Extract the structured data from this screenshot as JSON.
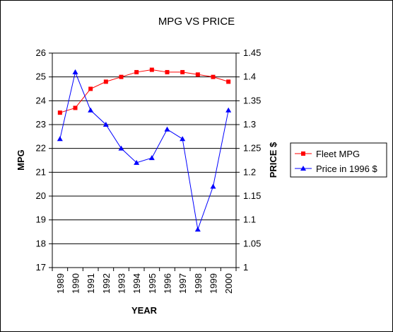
{
  "chart_data": {
    "type": "line",
    "title": "MPG VS PRICE",
    "xlabel": "YEAR",
    "ylabel": "MPG",
    "y2label": "PRICE $",
    "categories": [
      "1989",
      "1990",
      "1991",
      "1992",
      "1993",
      "1994",
      "1995",
      "1996",
      "1997",
      "1998",
      "1999",
      "2000"
    ],
    "ylim": [
      17,
      26
    ],
    "y_ticks": [
      "17",
      "18",
      "19",
      "20",
      "21",
      "22",
      "23",
      "24",
      "25",
      "26"
    ],
    "y2lim": [
      1,
      1.45
    ],
    "y2_ticks": [
      "1",
      "1.05",
      "1.1",
      "1.15",
      "1.2",
      "1.25",
      "1.3",
      "1.35",
      "1.4",
      "1.45"
    ],
    "grid": true,
    "legend_position": "right",
    "series": [
      {
        "name": "Fleet MPG",
        "axis": "left",
        "color": "#ff0000",
        "marker": "square",
        "values": [
          23.5,
          23.7,
          24.5,
          24.8,
          25.0,
          25.2,
          25.3,
          25.2,
          25.2,
          25.1,
          25.0,
          24.8
        ]
      },
      {
        "name": "Price in 1996 $",
        "axis": "right",
        "color": "#0000ff",
        "marker": "triangle",
        "values": [
          1.27,
          1.41,
          1.33,
          1.3,
          1.25,
          1.22,
          1.23,
          1.29,
          1.27,
          1.08,
          1.17,
          1.33
        ]
      }
    ]
  }
}
